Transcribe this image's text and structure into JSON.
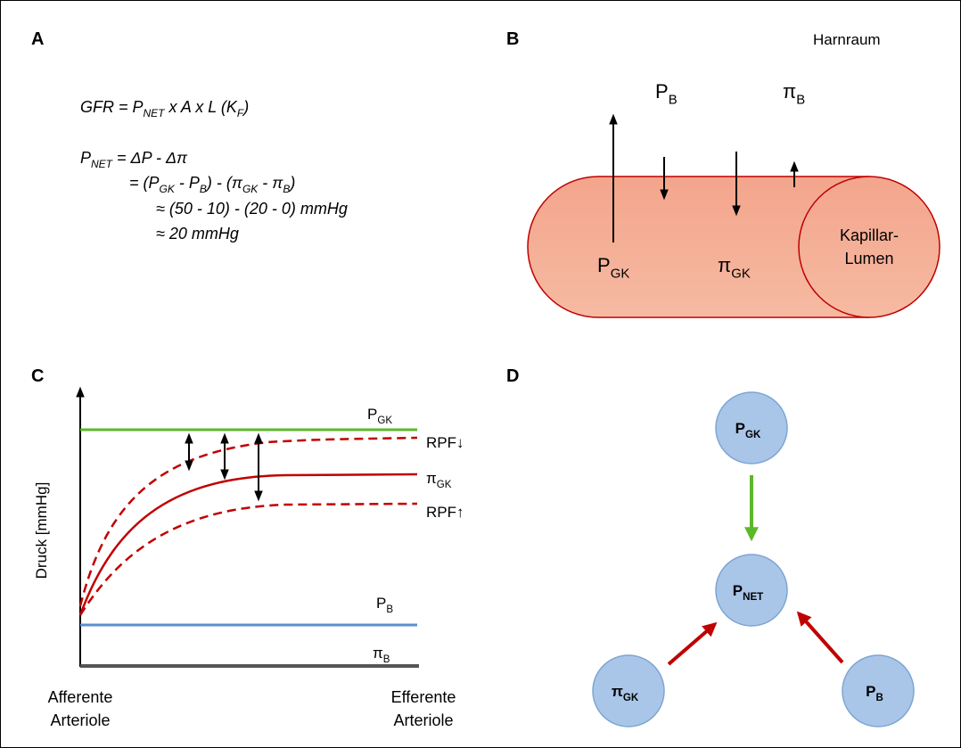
{
  "panel_a": {
    "letter": "A",
    "equations": [
      [
        {
          "text": "GFR = P"
        },
        {
          "sub": "NET"
        },
        {
          "text": " x A x L (K"
        },
        {
          "sub": "F"
        },
        {
          "text": ")"
        }
      ],
      [
        {
          "text": "P"
        },
        {
          "sub": "NET"
        },
        {
          "text": " = ΔP - Δπ"
        }
      ],
      [
        {
          "text": "= (P"
        },
        {
          "sub": "GK"
        },
        {
          "text": " - P"
        },
        {
          "sub": "B"
        },
        {
          "text": ") - (π"
        },
        {
          "sub": "GK"
        },
        {
          "text": " - π"
        },
        {
          "sub": "B"
        },
        {
          "text": ")"
        }
      ],
      [
        {
          "text": "≈ (50 - 10) - (20 - 0) mmHg"
        }
      ],
      [
        {
          "text": "≈ 20 mmHg"
        }
      ]
    ]
  },
  "panel_b": {
    "letter": "B",
    "title": "Harnraum",
    "p_b": {
      "main": "P",
      "sub": "B"
    },
    "pi_b": {
      "main": "π",
      "sub": "B"
    },
    "p_gk": {
      "main": "P",
      "sub": "GK"
    },
    "pi_gk": {
      "main": "π",
      "sub": "GK"
    },
    "lumen": [
      "Kapillar-",
      "Lumen"
    ]
  },
  "panel_c": {
    "letter": "C",
    "y_label": "Druck [mmHg]",
    "p_gk": {
      "main": "P",
      "sub": "GK"
    },
    "rpf_down": "RPF↓",
    "pi_gk": {
      "main": "π",
      "sub": "GK"
    },
    "rpf_up": "RPF↑",
    "p_b": {
      "main": "P",
      "sub": "B"
    },
    "pi_b": {
      "main": "π",
      "sub": "B"
    },
    "x_start": [
      "Afferente",
      "Arteriole"
    ],
    "x_end": [
      "Efferente",
      "Arteriole"
    ]
  },
  "panel_d": {
    "letter": "D",
    "nodes": [
      {
        "main": "P",
        "sub": "GK"
      },
      {
        "main": "P",
        "sub": "NET"
      },
      {
        "main": "π",
        "sub": "GK"
      },
      {
        "main": "P",
        "sub": "B"
      }
    ]
  }
}
